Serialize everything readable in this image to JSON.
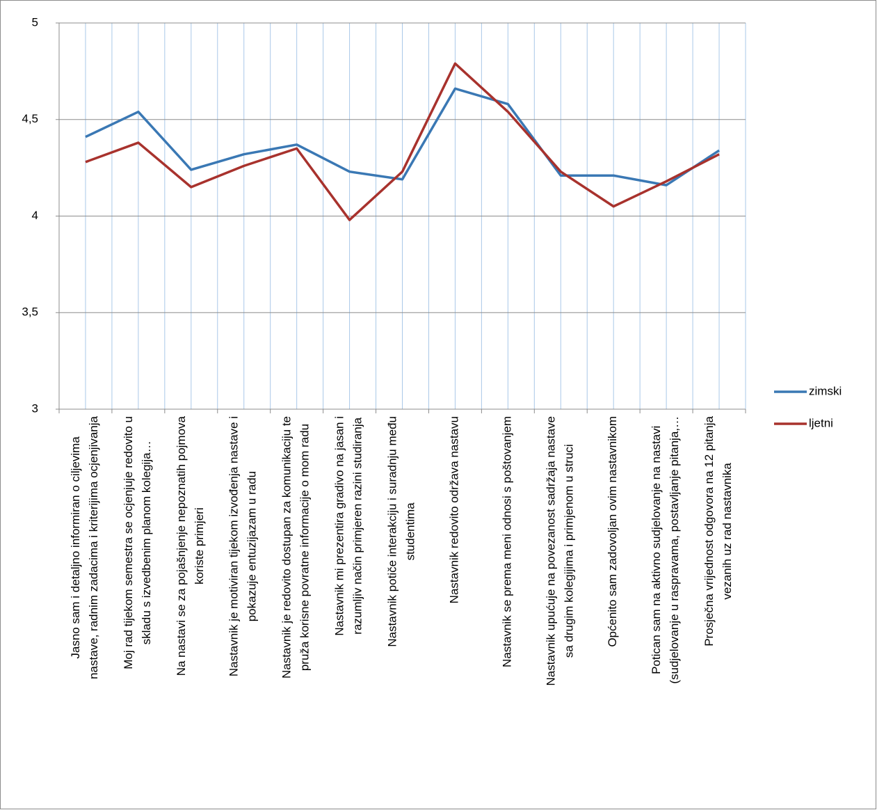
{
  "chart_data": {
    "type": "line",
    "categories": [
      "Jasno sam i detaljno informiran o ciljevima\nnastave, radnim zadacima i kriterijima ocjenjivanja",
      "Moj rad tijekom semestra se ocjenjuje redovito u\nskladu s izvedbenim planom kolegija…",
      "Na nastavi se za pojašnjenje nepoznatih pojmova\nkoriste primjeri",
      "Nastavnik je motiviran tijekom izvođenja nastave i\npokazuje entuzijazam u radu",
      "Nastavnik je redovito dostupan za komunikaciju te\npruža korisne povratne informacije o mom radu",
      "Nastavnik mi prezentira gradivo na jasan i\nrazumljiv način primjeren razini studiranja",
      "Nastavnik potiče interakciju i suradnju među\nstudentima",
      "Nastavnik redovito održava nastavu",
      "Nastavnik se prema meni odnosi s poštovanjem",
      "Nastavnik upućuje na povezanost sadržaja nastave\nsa drugim kolegijima i primjenom u struci",
      "Općenito sam zadovoljan ovim nastavnikom",
      "Potican sam na aktivno sudjelovanje na nastavi\n(sudjelovanje u raspravama, postavljanje pitanja,…",
      "Prosječna vrijednost odgovora na 12 pitanja\nvezanih uz rad nastavnika"
    ],
    "series": [
      {
        "name": "zimski",
        "color": "#3a78b4",
        "values": [
          4.41,
          4.54,
          4.24,
          4.32,
          4.37,
          4.23,
          4.19,
          4.66,
          4.58,
          4.21,
          4.21,
          4.16,
          4.34
        ]
      },
      {
        "name": "ljetni",
        "color": "#a8322d",
        "values": [
          4.28,
          4.38,
          4.15,
          4.26,
          4.35,
          3.98,
          4.23,
          4.79,
          4.54,
          4.23,
          4.05,
          4.18,
          4.32
        ]
      }
    ],
    "ylim": [
      3,
      5
    ],
    "yticks": [
      3,
      {
        "value": 3.5,
        "label": "3,5"
      },
      4,
      {
        "value": 4.5,
        "label": "4,5"
      },
      5
    ],
    "grid": true,
    "legend": "right"
  }
}
